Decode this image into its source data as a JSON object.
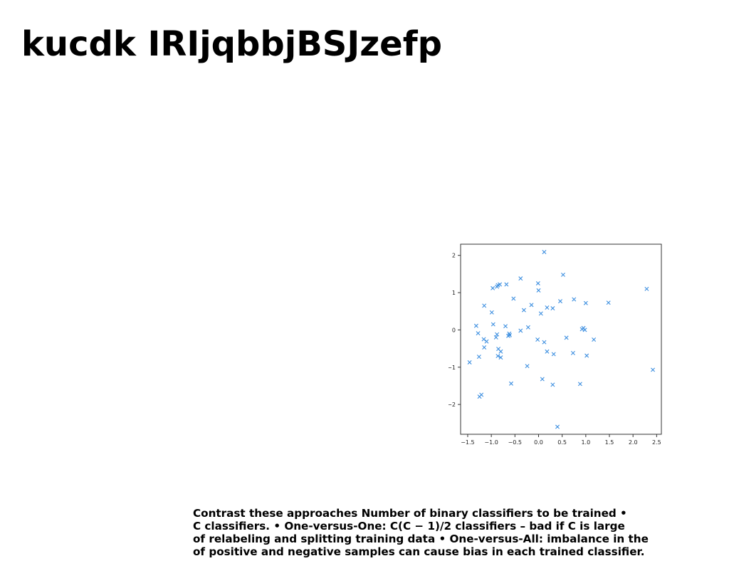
{
  "slide": {
    "title": "kucdk IRIjqbbjBSJzefp",
    "caption_lines": [
      "Contrast these approaches Number of binary classifiers to be trained •",
      "C classifiers. • One-versus-One: C(C − 1)/2 classifiers – bad if C is large",
      "of relabeling and splitting training data • One-versus-All: imbalance in the",
      "of positive and negative samples can cause bias in each trained classifier."
    ]
  },
  "chart_data": {
    "type": "scatter",
    "marker": "x",
    "color": "#3d8fe0",
    "xlim": [
      -1.65,
      2.6
    ],
    "ylim": [
      -2.8,
      2.3
    ],
    "xticks": [
      -1.5,
      -1.0,
      -0.5,
      0.0,
      0.5,
      1.0,
      1.5,
      2.0,
      2.5
    ],
    "xtick_labels": [
      "−1.5",
      "−1.0",
      "−0.5",
      "0.0",
      "0.5",
      "1.0",
      "1.5",
      "2.0",
      "2.5"
    ],
    "yticks": [
      -2,
      -1,
      0,
      1,
      2
    ],
    "ytick_labels": [
      "−2",
      "−1",
      "0",
      "1",
      "2"
    ],
    "grid": false,
    "points": [
      [
        0.12,
        2.09
      ],
      [
        0.52,
        1.48
      ],
      [
        -0.38,
        1.38
      ],
      [
        -0.01,
        1.25
      ],
      [
        -0.82,
        1.22
      ],
      [
        -0.86,
        1.2
      ],
      [
        -0.68,
        1.22
      ],
      [
        -0.88,
        1.16
      ],
      [
        -0.97,
        1.12
      ],
      [
        0.0,
        1.06
      ],
      [
        2.29,
        1.1
      ],
      [
        -0.53,
        0.84
      ],
      [
        0.46,
        0.77
      ],
      [
        0.75,
        0.82
      ],
      [
        1.0,
        0.72
      ],
      [
        1.48,
        0.73
      ],
      [
        -1.15,
        0.65
      ],
      [
        -0.15,
        0.67
      ],
      [
        -0.31,
        0.53
      ],
      [
        0.18,
        0.6
      ],
      [
        0.3,
        0.58
      ],
      [
        0.05,
        0.44
      ],
      [
        -0.99,
        0.47
      ],
      [
        -1.32,
        0.11
      ],
      [
        -0.96,
        0.15
      ],
      [
        -0.7,
        0.1
      ],
      [
        -0.22,
        0.07
      ],
      [
        -1.28,
        -0.09
      ],
      [
        -0.88,
        -0.12
      ],
      [
        -0.62,
        -0.1
      ],
      [
        -0.61,
        -0.14
      ],
      [
        -0.64,
        -0.16
      ],
      [
        -0.38,
        -0.02
      ],
      [
        0.92,
        0.02
      ],
      [
        0.95,
        0.05
      ],
      [
        0.98,
        0.0
      ],
      [
        -1.16,
        -0.25
      ],
      [
        -1.1,
        -0.31
      ],
      [
        -0.9,
        -0.2
      ],
      [
        -0.02,
        -0.26
      ],
      [
        0.59,
        -0.21
      ],
      [
        1.17,
        -0.26
      ],
      [
        0.12,
        -0.33
      ],
      [
        -1.15,
        -0.47
      ],
      [
        -0.85,
        -0.51
      ],
      [
        -0.8,
        -0.58
      ],
      [
        0.18,
        -0.58
      ],
      [
        0.32,
        -0.65
      ],
      [
        0.73,
        -0.62
      ],
      [
        1.02,
        -0.69
      ],
      [
        -0.86,
        -0.7
      ],
      [
        -0.8,
        -0.74
      ],
      [
        -1.26,
        -0.72
      ],
      [
        -1.46,
        -0.87
      ],
      [
        -0.24,
        -0.97
      ],
      [
        0.08,
        -1.32
      ],
      [
        2.42,
        -1.07
      ],
      [
        -0.58,
        -1.44
      ],
      [
        0.3,
        -1.47
      ],
      [
        0.88,
        -1.45
      ],
      [
        -1.21,
        -1.74
      ],
      [
        -1.25,
        -1.79
      ],
      [
        0.4,
        -2.6
      ]
    ]
  }
}
